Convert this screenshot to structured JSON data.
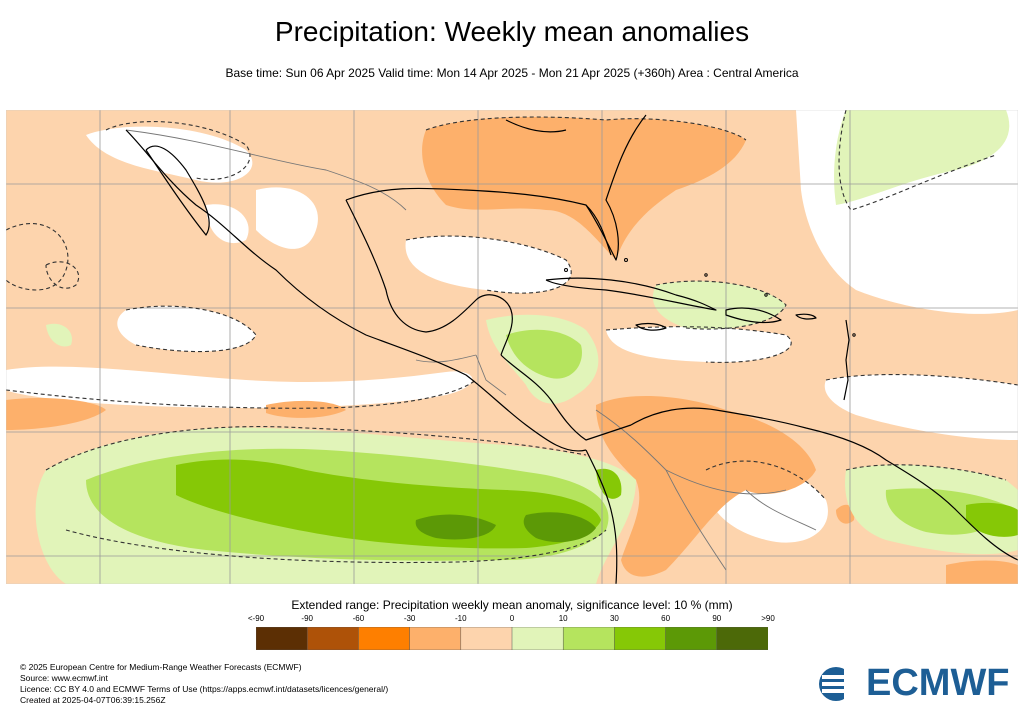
{
  "title": "Precipitation: Weekly mean anomalies",
  "subtitle": "Base time: Sun 06 Apr 2025 Valid time: Mon 14 Apr 2025 - Mon 21 Apr 2025 (+360h) Area : Central America",
  "colorbar": {
    "title": "Extended range: Precipitation weekly mean anomaly, significance level: 10 % (mm)",
    "tick_labels": [
      "<-90",
      "-90",
      "-60",
      "-30",
      "-10",
      "0",
      "10",
      "30",
      "60",
      "90",
      ">90"
    ],
    "colors": [
      "#5c2f04",
      "#ae5208",
      "#fe7f00",
      "#fdb06b",
      "#fdd4ad",
      "#e1f4b9",
      "#b5e45e",
      "#86c806",
      "#5c9906",
      "#4c6908"
    ]
  },
  "map": {
    "area": "Central America",
    "colors": {
      "ocean_dry_light": "#fdd4ad",
      "dry_mid": "#fdb06b",
      "wet_light": "#e1f4b9",
      "wet_mid": "#b5e45e",
      "wet_strong": "#86c806",
      "wet_very": "#5c9906",
      "neutral": "#ffffff",
      "coast": "#000000",
      "border": "#777777",
      "grid": "#9a9a9a"
    }
  },
  "footer": {
    "copyright": "© 2025 European Centre for Medium-Range Weather Forecasts (ECMWF)",
    "source": "Source: www.ecmwf.int",
    "licence": "Licence: CC BY 4.0 and ECMWF Terms of Use (https://apps.ecmwf.int/datasets/licences/general/)",
    "created": "Created at 2025-04-07T06:39:15.256Z"
  },
  "logo": {
    "text": "ECMWF",
    "color": "#1d5e95"
  }
}
